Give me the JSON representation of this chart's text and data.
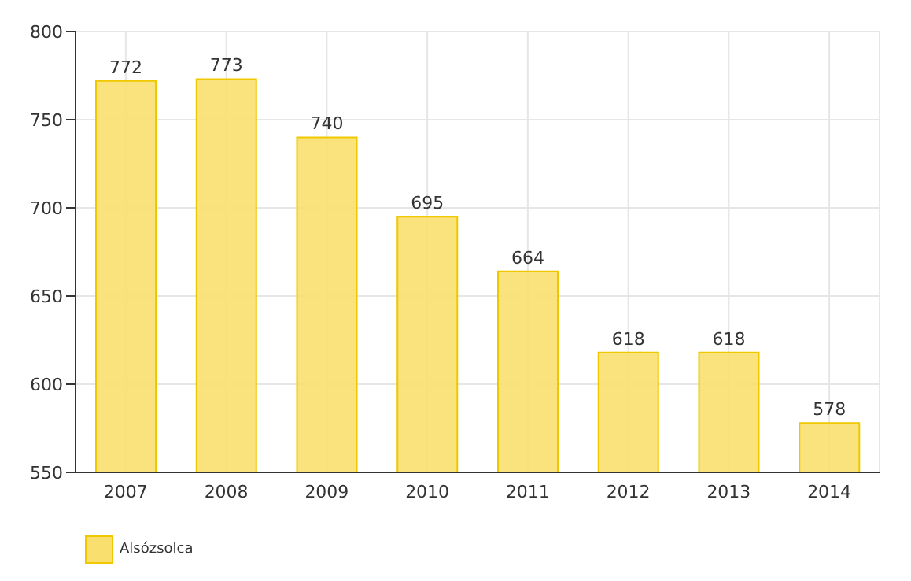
{
  "chart_data": {
    "type": "bar",
    "categories": [
      "2007",
      "2008",
      "2009",
      "2010",
      "2011",
      "2012",
      "2013",
      "2014"
    ],
    "series": [
      {
        "name": "Alsózsolca",
        "color": "#f9df6e",
        "values": [
          772,
          773,
          740,
          695,
          664,
          618,
          618,
          578
        ]
      }
    ],
    "ylim": [
      550,
      800
    ],
    "yticks": [
      550,
      600,
      650,
      700,
      750,
      800
    ],
    "grid": true,
    "data_labels": true,
    "legend": "bottom left"
  }
}
